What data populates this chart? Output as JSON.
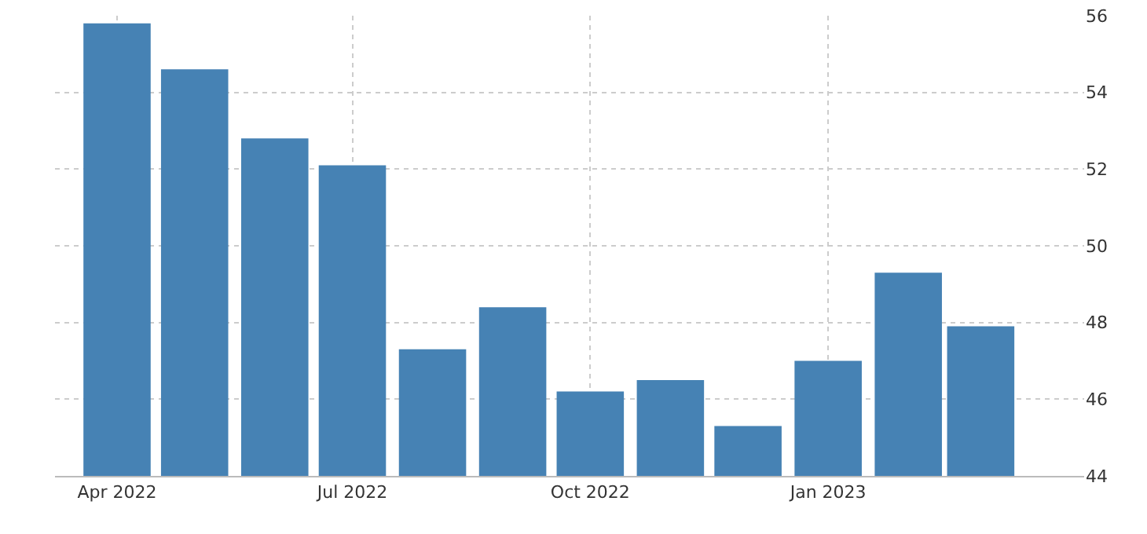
{
  "chart_data": {
    "type": "bar",
    "x": [
      "2022-04",
      "2022-05",
      "2022-06",
      "2022-07",
      "2022-08",
      "2022-09",
      "2022-10",
      "2022-11",
      "2022-12",
      "2023-01",
      "2023-02",
      "2023-03"
    ],
    "values": [
      55.8,
      54.6,
      52.8,
      52.1,
      47.3,
      48.4,
      46.2,
      46.5,
      45.3,
      47.0,
      49.3,
      47.9
    ],
    "color": "#4682b4",
    "xlim": [
      "2022-03-08",
      "2023-04-10"
    ],
    "xticks": [
      {
        "value": "2022-04",
        "label": "Apr 2022"
      },
      {
        "value": "2022-07",
        "label": "Jul 2022"
      },
      {
        "value": "2022-10",
        "label": "Oct 2022"
      },
      {
        "value": "2023-01",
        "label": "Jan 2023"
      }
    ],
    "ylim": [
      44,
      56
    ],
    "yticks": [
      44,
      46,
      48,
      50,
      52,
      54,
      56
    ],
    "grid": true
  }
}
